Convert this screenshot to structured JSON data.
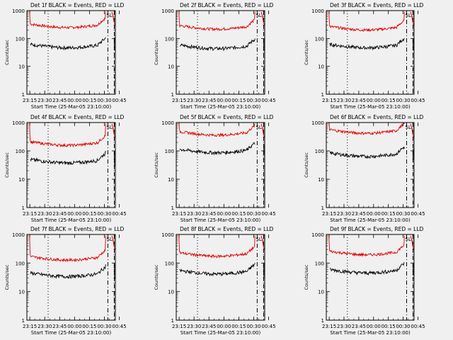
{
  "figure": {
    "background": "#f0f0f0",
    "ylabel": "Counts/sec",
    "xlabel": "Start Time (25-Mar-05 23:10:00)",
    "x_ticks": [
      "23:15",
      "23:30",
      "23:45",
      "00:00",
      "00:15",
      "00:30",
      "00:45"
    ],
    "y_ticks": [
      "1",
      "10",
      "100",
      "1000"
    ],
    "marker_label": "SL",
    "colors": {
      "events": "#000000",
      "lld": "#e00000"
    }
  },
  "chart_data": [
    {
      "type": "line",
      "title": "Det 1f BLACK = Events, RED = LLD",
      "yscale": "log",
      "ylim": [
        1,
        1000
      ],
      "series": [
        {
          "name": "Events",
          "level": 62,
          "end_spike": 110
        },
        {
          "name": "LLD",
          "level": 330,
          "end_spike": 900
        }
      ]
    },
    {
      "type": "line",
      "title": "Det 2f BLACK = Events, RED = LLD",
      "yscale": "log",
      "ylim": [
        1,
        1000
      ],
      "series": [
        {
          "name": "Events",
          "level": 58,
          "end_spike": 100
        },
        {
          "name": "LLD",
          "level": 290,
          "end_spike": 900
        }
      ]
    },
    {
      "type": "line",
      "title": "Det 3f BLACK = Events, RED = LLD",
      "yscale": "log",
      "ylim": [
        1,
        1000
      ],
      "series": [
        {
          "name": "Events",
          "level": 62,
          "end_spike": 100
        },
        {
          "name": "LLD",
          "level": 270,
          "end_spike": 900
        }
      ]
    },
    {
      "type": "line",
      "title": "Det 4f BLACK = Events, RED = LLD",
      "yscale": "log",
      "ylim": [
        1,
        1000
      ],
      "series": [
        {
          "name": "Events",
          "level": 50,
          "end_spike": 100
        },
        {
          "name": "LLD",
          "level": 210,
          "end_spike": 900
        }
      ]
    },
    {
      "type": "line",
      "title": "Det 5f BLACK = Events, RED = LLD",
      "yscale": "log",
      "ylim": [
        1,
        1000
      ],
      "series": [
        {
          "name": "Events",
          "level": 115,
          "end_spike": 170
        },
        {
          "name": "LLD",
          "level": 480,
          "end_spike": 900
        }
      ]
    },
    {
      "type": "line",
      "title": "Det 6f BLACK = Events, RED = LLD",
      "yscale": "log",
      "ylim": [
        1,
        1000
      ],
      "series": [
        {
          "name": "Events",
          "level": 85,
          "end_spike": 120
        },
        {
          "name": "LLD",
          "level": 560,
          "end_spike": 900
        }
      ]
    },
    {
      "type": "line",
      "title": "Det 7f BLACK = Events, RED = LLD",
      "yscale": "log",
      "ylim": [
        1,
        1000
      ],
      "series": [
        {
          "name": "Events",
          "level": 45,
          "end_spike": 90
        },
        {
          "name": "LLD",
          "level": 170,
          "end_spike": 900
        }
      ]
    },
    {
      "type": "line",
      "title": "Det 8f BLACK = Events, RED = LLD",
      "yscale": "log",
      "ylim": [
        1,
        1000
      ],
      "series": [
        {
          "name": "Events",
          "level": 55,
          "end_spike": 100
        },
        {
          "name": "LLD",
          "level": 230,
          "end_spike": 900
        }
      ]
    },
    {
      "type": "line",
      "title": "Det 9f BLACK = Events, RED = LLD",
      "yscale": "log",
      "ylim": [
        1,
        1000
      ],
      "series": [
        {
          "name": "Events",
          "level": 60,
          "end_spike": 100
        },
        {
          "name": "LLD",
          "level": 260,
          "end_spike": 900
        }
      ]
    }
  ]
}
